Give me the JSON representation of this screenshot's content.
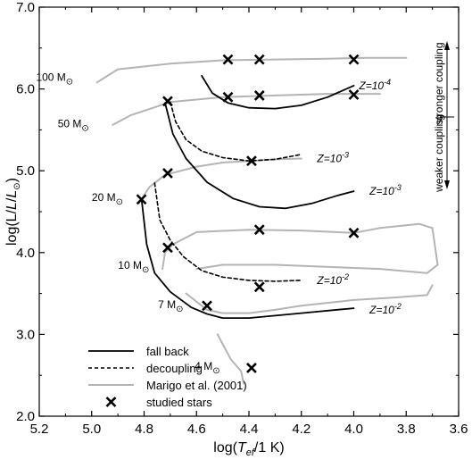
{
  "chart_data": {
    "type": "line",
    "xlabel": "log(T_ef/1 K)",
    "ylabel": "log(L/L_⊙)",
    "xlim": [
      5.2,
      3.6
    ],
    "ylim": [
      2.0,
      7.0
    ],
    "x_reversed": true,
    "xticks": [
      "5.2",
      "5.0",
      "4.8",
      "4.6",
      "4.4",
      "4.2",
      "4.0",
      "3.8",
      "3.6"
    ],
    "xtick_values": [
      5.2,
      5.0,
      4.8,
      4.6,
      4.4,
      4.2,
      4.0,
      3.8,
      3.6
    ],
    "yticks": [
      "2.0",
      "3.0",
      "4.0",
      "5.0",
      "6.0",
      "7.0"
    ],
    "ytick_values": [
      2.0,
      3.0,
      4.0,
      5.0,
      6.0,
      7.0
    ],
    "grid": false,
    "legend_position": "bottom-left",
    "legend": [
      {
        "label": "fall back",
        "style": "solid",
        "color": "#000000"
      },
      {
        "label": "decoupling",
        "style": "dashed",
        "color": "#000000"
      },
      {
        "label": "Marigo et al. (2001)",
        "style": "solid",
        "color": "#b4b4b4"
      },
      {
        "label": "studied stars",
        "style": "marker-x",
        "color": "#000000"
      }
    ],
    "series": [
      {
        "kind": "marigo",
        "points": [
          [
            4.98,
            6.08
          ],
          [
            4.9,
            6.24
          ],
          [
            4.7,
            6.31
          ],
          [
            4.5,
            6.35
          ],
          [
            4.3,
            6.36
          ],
          [
            4.1,
            6.37
          ],
          [
            3.95,
            6.38
          ],
          [
            3.8,
            6.38
          ]
        ]
      },
      {
        "kind": "marigo",
        "points": [
          [
            4.92,
            5.56
          ],
          [
            4.85,
            5.68
          ],
          [
            4.7,
            5.84
          ],
          [
            4.5,
            5.9
          ],
          [
            4.3,
            5.92
          ],
          [
            4.1,
            5.94
          ],
          [
            3.9,
            5.94
          ]
        ]
      },
      {
        "kind": "marigo",
        "points": [
          [
            4.82,
            4.6
          ],
          [
            4.78,
            4.8
          ],
          [
            4.72,
            4.95
          ],
          [
            4.6,
            5.05
          ],
          [
            4.5,
            5.1
          ],
          [
            4.4,
            5.12
          ],
          [
            4.3,
            5.14
          ],
          [
            4.2,
            5.15
          ]
        ]
      },
      {
        "kind": "marigo",
        "points": [
          [
            4.73,
            3.8
          ],
          [
            4.72,
            4.0
          ],
          [
            4.69,
            4.1
          ],
          [
            4.6,
            4.25
          ],
          [
            4.4,
            4.28
          ],
          [
            4.2,
            4.27
          ],
          [
            4.0,
            4.24
          ],
          [
            3.9,
            4.3
          ],
          [
            3.75,
            4.35
          ],
          [
            3.7,
            4.3
          ],
          [
            3.68,
            3.85
          ],
          [
            3.72,
            3.75
          ],
          [
            3.9,
            3.8
          ],
          [
            4.3,
            3.85
          ],
          [
            4.5,
            3.85
          ],
          [
            4.6,
            3.8
          ]
        ]
      },
      {
        "kind": "marigo",
        "points": [
          [
            4.64,
            3.5
          ],
          [
            4.6,
            3.4
          ],
          [
            4.56,
            3.3
          ],
          [
            4.5,
            3.26
          ],
          [
            4.4,
            3.26
          ],
          [
            4.3,
            3.3
          ],
          [
            4.2,
            3.35
          ],
          [
            4.0,
            3.42
          ],
          [
            3.85,
            3.45
          ],
          [
            3.72,
            3.48
          ],
          [
            3.7,
            3.6
          ]
        ]
      },
      {
        "kind": "marigo",
        "points": [
          [
            4.52,
            3.0
          ],
          [
            4.47,
            2.7
          ],
          [
            4.43,
            2.55
          ],
          [
            4.42,
            2.4
          ]
        ]
      },
      {
        "kind": "fallback",
        "z_label": "Z=10^-4",
        "points": [
          [
            4.58,
            6.16
          ],
          [
            4.54,
            5.95
          ],
          [
            4.48,
            5.83
          ],
          [
            4.4,
            5.77
          ],
          [
            4.3,
            5.76
          ],
          [
            4.2,
            5.8
          ],
          [
            4.1,
            5.9
          ],
          [
            4.0,
            6.04
          ]
        ]
      },
      {
        "kind": "fallback",
        "z_label": "Z=10^-3",
        "points": [
          [
            4.72,
            5.83
          ],
          [
            4.69,
            5.45
          ],
          [
            4.64,
            5.15
          ],
          [
            4.56,
            4.86
          ],
          [
            4.46,
            4.66
          ],
          [
            4.36,
            4.56
          ],
          [
            4.26,
            4.54
          ],
          [
            4.16,
            4.6
          ],
          [
            4.06,
            4.7
          ],
          [
            4.0,
            4.75
          ]
        ]
      },
      {
        "kind": "fallback",
        "z_label": "Z=10^-2",
        "points": [
          [
            4.81,
            4.66
          ],
          [
            4.79,
            4.1
          ],
          [
            4.76,
            3.75
          ],
          [
            4.7,
            3.52
          ],
          [
            4.62,
            3.33
          ],
          [
            4.56,
            3.25
          ],
          [
            4.5,
            3.2
          ],
          [
            4.4,
            3.2
          ],
          [
            4.2,
            3.26
          ],
          [
            4.0,
            3.32
          ]
        ]
      },
      {
        "kind": "decoupling",
        "z_label": "Z=10^-3",
        "points": [
          [
            4.7,
            5.84
          ],
          [
            4.68,
            5.6
          ],
          [
            4.64,
            5.38
          ],
          [
            4.58,
            5.24
          ],
          [
            4.5,
            5.16
          ],
          [
            4.4,
            5.12
          ],
          [
            4.3,
            5.14
          ],
          [
            4.2,
            5.2
          ]
        ]
      },
      {
        "kind": "decoupling",
        "z_label": "Z=10^-2",
        "points": [
          [
            4.76,
            4.85
          ],
          [
            4.74,
            4.4
          ],
          [
            4.7,
            4.15
          ],
          [
            4.65,
            3.95
          ],
          [
            4.58,
            3.78
          ],
          [
            4.5,
            3.7
          ],
          [
            4.4,
            3.66
          ],
          [
            4.3,
            3.65
          ],
          [
            4.2,
            3.66
          ]
        ]
      }
    ],
    "studied_stars": [
      [
        4.48,
        6.36
      ],
      [
        4.36,
        6.36
      ],
      [
        4.0,
        6.36
      ],
      [
        4.48,
        5.9
      ],
      [
        4.36,
        5.92
      ],
      [
        4.0,
        5.93
      ],
      [
        4.71,
        5.85
      ],
      [
        4.39,
        5.12
      ],
      [
        4.71,
        4.97
      ],
      [
        4.81,
        4.65
      ],
      [
        4.36,
        4.28
      ],
      [
        4.0,
        4.24
      ],
      [
        4.71,
        4.06
      ],
      [
        4.36,
        3.58
      ],
      [
        4.56,
        3.35
      ],
      [
        4.39,
        2.59
      ]
    ],
    "mass_labels": [
      {
        "text": "100 M⊙",
        "x": 5.07,
        "y": 6.1
      },
      {
        "text": "50 M⊙",
        "x": 5.01,
        "y": 5.53
      },
      {
        "text": "20 M⊙",
        "x": 4.88,
        "y": 4.63
      },
      {
        "text": "10 M⊙",
        "x": 4.78,
        "y": 3.8
      },
      {
        "text": "7 M⊙",
        "x": 4.65,
        "y": 3.32
      },
      {
        "text": "4 M⊙",
        "x": 4.51,
        "y": 2.57
      }
    ],
    "z_labels": [
      {
        "text": "Z=10^-4",
        "x": 3.98,
        "y": 6.04
      },
      {
        "text": "Z=10^-3",
        "x": 4.14,
        "y": 5.15
      },
      {
        "text": "Z=10^-3",
        "x": 3.94,
        "y": 4.75
      },
      {
        "text": "Z=10^-2",
        "x": 4.14,
        "y": 3.66
      },
      {
        "text": "Z=10^-2",
        "x": 3.94,
        "y": 3.3
      }
    ],
    "coupling_labels": {
      "stronger": "stronger coupling",
      "weaker": "weaker coupling"
    }
  }
}
